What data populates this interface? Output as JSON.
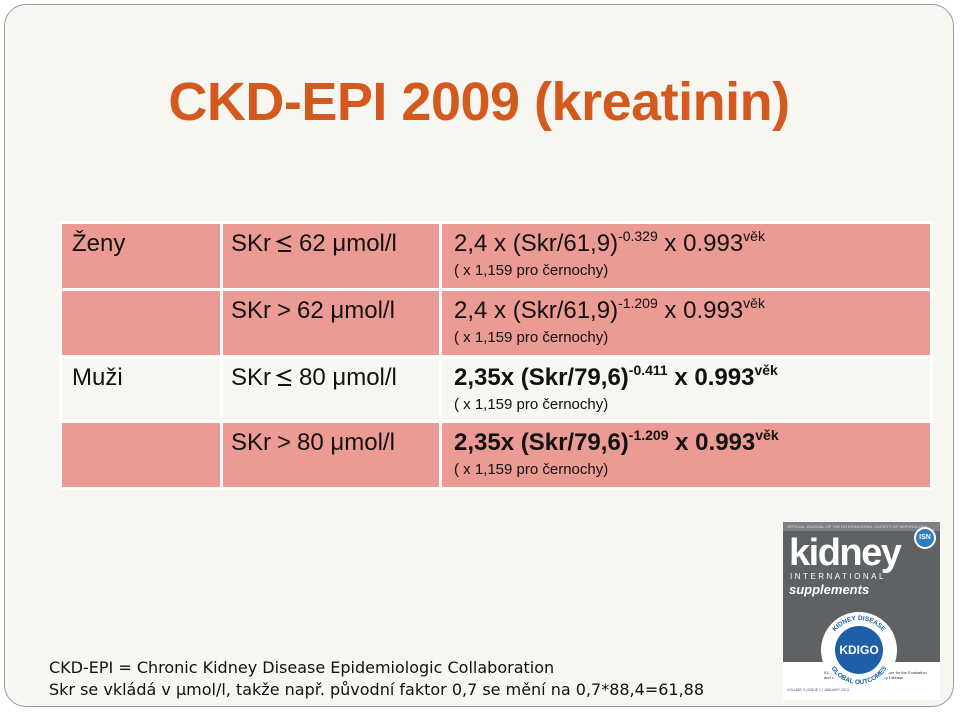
{
  "title": "CKD-EPI 2009 (kreatinin)",
  "table": {
    "rows": [
      {
        "sex": "Ženy",
        "cond_prefix": "SKr",
        "cond_op": "≤",
        "cond_value": "62 μmol/l",
        "formula_base": "2,4 x (Skr/61,9)",
        "formula_exp": "-0.329",
        "formula_mid": " x 0.993",
        "formula_age": "věk",
        "note": "( x 1,159 pro černochy)",
        "bg": "pink"
      },
      {
        "sex": "",
        "cond_prefix": "SKr",
        "cond_op": ">",
        "cond_value": "62 μmol/l",
        "formula_base": "2,4 x (Skr/61,9)",
        "formula_exp": "-1.209",
        "formula_mid": " x 0.993",
        "formula_age": "věk",
        "note": "( x 1,159 pro černochy)",
        "bg": "pink"
      },
      {
        "sex": "Muži",
        "cond_prefix": "SKr",
        "cond_op": "≤",
        "cond_value": "80 μmol/l",
        "formula_base": "2,35x (Skr/79,6)",
        "formula_exp": "-0.411",
        "formula_mid": " x 0.993",
        "formula_age": "věk",
        "note": "( x 1,159 pro černochy)",
        "bg": "light"
      },
      {
        "sex": "",
        "cond_prefix": "SKr",
        "cond_op": ">",
        "cond_value": "80 μmol/l",
        "formula_base": "2,35x (Skr/79,6)",
        "formula_exp": "-1.209",
        "formula_mid": " x 0.993",
        "formula_age": "věk",
        "note": "( x 1,159 pro černochy)",
        "bg": "pink"
      }
    ]
  },
  "footer": {
    "line1": "CKD-EPI = Chronic Kidney Disease Epidemiologic Collaboration",
    "line2": "Skr se vkládá v μmol/l, takže např. původní faktor 0,7 se mění na 0,7*88,4=61,88"
  },
  "cover": {
    "strip": "OFFICIAL JOURNAL OF THE INTERNATIONAL SOCIETY OF NEPHROLOGY",
    "kidney": "kidney",
    "international": "INTERNATIONAL",
    "supplements": "supplements",
    "isn": "ISN",
    "logo_text": "KDIGO",
    "ring_top": "KIDNEY DISEASE",
    "ring_left": "IMPROVING",
    "ring_bottom": "GLOBAL OUTCOMES",
    "guideline": "KDIGO 2012 Clinical Practice Guideline for the Evaluation and Management of Chronic Kidney Disease",
    "volume": "VOLUME 3 | ISSUE 1 | JANUARY 2013"
  },
  "colors": {
    "title": "#d4591e",
    "row_pink": "#eb9a94",
    "row_light": "#f7f6f0"
  }
}
